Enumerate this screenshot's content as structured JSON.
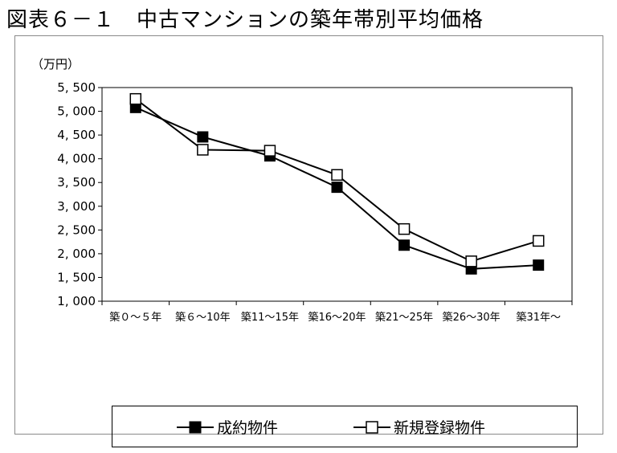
{
  "title": "図表６－１　中古マンションの築年帯別平均価格",
  "chart_data": {
    "type": "line",
    "unit_label": "（万円）",
    "categories": [
      "築０～５年",
      "築６～10年",
      "築11～15年",
      "築16～20年",
      "築21～25年",
      "築26～30年",
      "築31年～"
    ],
    "ylim": [
      1000,
      5500
    ],
    "yticks": [
      1000,
      1500,
      2000,
      2500,
      3000,
      3500,
      4000,
      4500,
      5000,
      5500
    ],
    "ytick_labels": [
      "1, 000",
      "1, 500",
      "2, 000",
      "2, 500",
      "3, 000",
      "3, 500",
      "4, 000",
      "4, 500",
      "5, 000",
      "5, 500"
    ],
    "grid": false,
    "legend_position": "bottom",
    "series": [
      {
        "name": "成約物件",
        "marker": "filled-square",
        "color": "#000000",
        "values": [
          5080,
          4460,
          4060,
          3400,
          2180,
          1680,
          1760
        ]
      },
      {
        "name": "新規登録物件",
        "marker": "open-square",
        "color": "#000000",
        "values": [
          5260,
          4190,
          4170,
          3660,
          2520,
          1840,
          2270
        ]
      }
    ]
  }
}
